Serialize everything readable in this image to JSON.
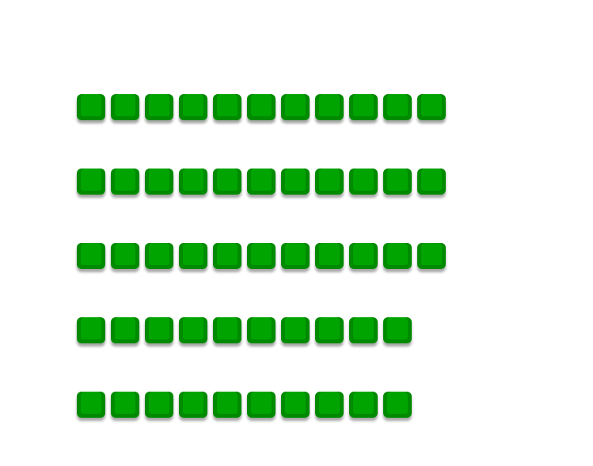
{
  "grid": {
    "rows": [
      11,
      11,
      11,
      10,
      10
    ],
    "tile_icon": "green-square-button-icon",
    "colors": {
      "face": "#00a400",
      "side": "#008a00"
    }
  }
}
